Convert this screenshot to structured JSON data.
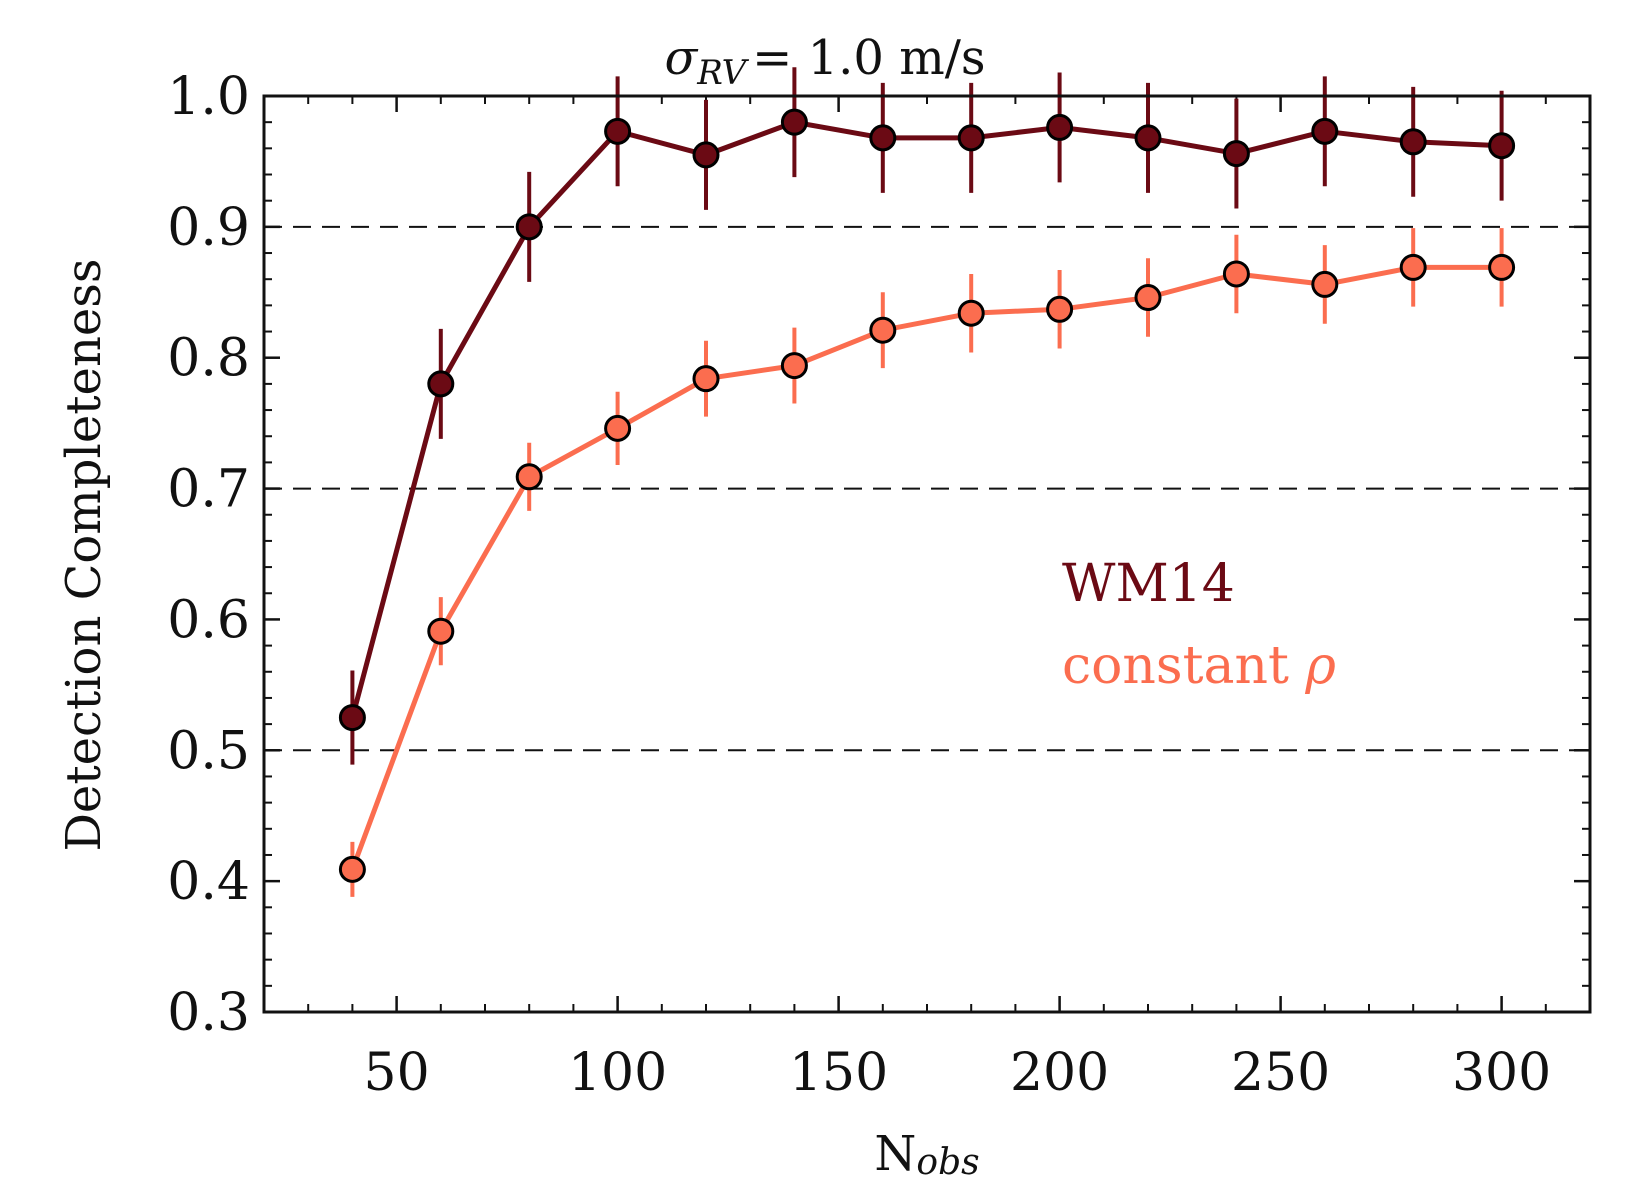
{
  "chart_data": {
    "type": "line",
    "title": {
      "symbol": "σ",
      "subscript": "RV",
      "text": "= 1.0 m/s"
    },
    "xlabel": {
      "base": "N",
      "subscript": "obs"
    },
    "ylabel": "Detection Completeness",
    "xlim": [
      20,
      320
    ],
    "ylim": [
      0.3,
      1.0
    ],
    "xticks": [
      50,
      100,
      150,
      200,
      250,
      300
    ],
    "xtick_labels": [
      "50",
      "100",
      "150",
      "200",
      "250",
      "300"
    ],
    "yticks": [
      0.3,
      0.4,
      0.5,
      0.6,
      0.7,
      0.8,
      0.9,
      1.0
    ],
    "ytick_labels": [
      "0.3",
      "0.4",
      "0.5",
      "0.6",
      "0.7",
      "0.8",
      "0.9",
      "1.0"
    ],
    "reference_lines": [
      0.5,
      0.7,
      0.9
    ],
    "x": [
      40,
      60,
      80,
      100,
      120,
      140,
      160,
      180,
      200,
      220,
      240,
      260,
      280,
      300
    ],
    "series": [
      {
        "name": "WM14",
        "color": "#6b0a14",
        "values": [
          0.525,
          0.78,
          0.9,
          0.973,
          0.955,
          0.98,
          0.968,
          0.968,
          0.976,
          0.968,
          0.956,
          0.973,
          0.965,
          0.962
        ],
        "errors": [
          0.036,
          0.042,
          0.042,
          0.042,
          0.042,
          0.042,
          0.042,
          0.042,
          0.042,
          0.042,
          0.042,
          0.042,
          0.042,
          0.042
        ]
      },
      {
        "name": "constant ρ",
        "color": "#fb6d4f",
        "values": [
          0.409,
          0.591,
          0.709,
          0.746,
          0.784,
          0.794,
          0.821,
          0.834,
          0.837,
          0.846,
          0.864,
          0.856,
          0.869,
          0.869
        ],
        "errors": [
          0.021,
          0.026,
          0.026,
          0.028,
          0.029,
          0.029,
          0.029,
          0.03,
          0.03,
          0.03,
          0.03,
          0.03,
          0.03,
          0.03
        ]
      }
    ],
    "legend": [
      {
        "name": "WM14",
        "label": "WM14",
        "color": "#6b0a14"
      },
      {
        "name": "constant ρ",
        "label": "constant ",
        "symbol": "ρ",
        "color": "#fb6d4f"
      }
    ],
    "legend_position": "center-right",
    "grid": false
  }
}
